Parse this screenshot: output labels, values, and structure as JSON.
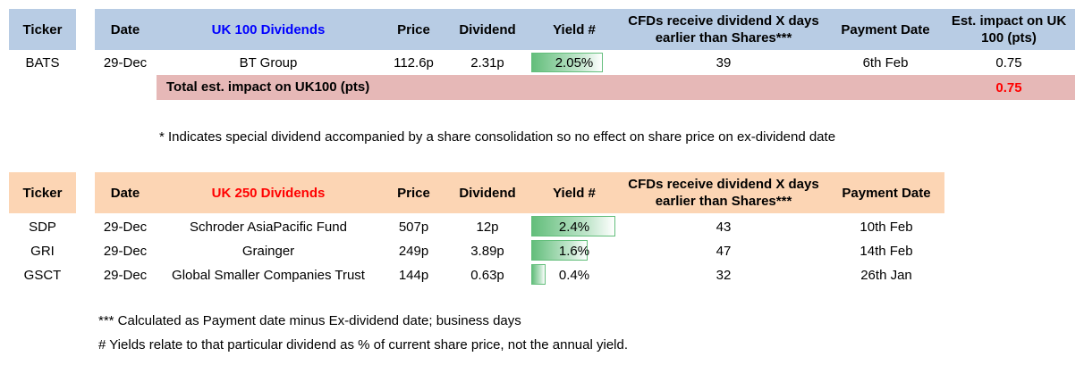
{
  "uk100": {
    "headers": {
      "ticker": "Ticker",
      "date": "Date",
      "title": "UK 100 Dividends",
      "price": "Price",
      "dividend": "Dividend",
      "yield": "Yield #",
      "cfd_line1": "CFDs receive dividend X days",
      "cfd_line2": "earlier than Shares***",
      "payment_date": "Payment Date",
      "impact_line1": "Est. impact on UK",
      "impact_line2": "100 (pts)"
    },
    "rows": [
      {
        "ticker": "BATS",
        "date": "29-Dec",
        "name": "BT Group",
        "price": "112.6p",
        "dividend": "2.31p",
        "yield": "2.05%",
        "yield_pct": 2.05,
        "cfd_days": "39",
        "payment_date": "6th Feb",
        "impact": "0.75"
      }
    ],
    "total": {
      "label": "Total est. impact on UK100 (pts)",
      "value": "0.75"
    }
  },
  "special_note": "* Indicates special dividend accompanied by a share consolidation so no effect on share price on ex-dividend date",
  "uk250": {
    "headers": {
      "ticker": "Ticker",
      "date": "Date",
      "title": "UK 250 Dividends",
      "price": "Price",
      "dividend": "Dividend",
      "yield": "Yield #",
      "cfd_line1": "CFDs receive dividend X days",
      "cfd_line2": "earlier than Shares***",
      "payment_date": "Payment Date"
    },
    "rows": [
      {
        "ticker": "SDP",
        "date": "29-Dec",
        "name": "Schroder AsiaPacific Fund",
        "price": "507p",
        "dividend": "12p",
        "yield": "2.4%",
        "yield_pct": 2.4,
        "cfd_days": "43",
        "payment_date": "10th Feb"
      },
      {
        "ticker": "GRI",
        "date": "29-Dec",
        "name": "Grainger",
        "price": "249p",
        "dividend": "3.89p",
        "yield": "1.6%",
        "yield_pct": 1.6,
        "cfd_days": "47",
        "payment_date": "14th Feb"
      },
      {
        "ticker": "GSCT",
        "date": "29-Dec",
        "name": "Global Smaller Companies Trust",
        "price": "144p",
        "dividend": "0.63p",
        "yield": "0.4%",
        "yield_pct": 0.4,
        "cfd_days": "32",
        "payment_date": "26th Jan"
      }
    ]
  },
  "footnotes": {
    "calc": "*** Calculated as Payment date minus Ex-dividend date; business days",
    "yield": "# Yields relate to that particular dividend as % of current share price, not the annual yield."
  },
  "colors": {
    "uk100_header": "#b8cce4",
    "uk100_title": "#0000ff",
    "uk250_header": "#fcd5b4",
    "uk250_title": "#ff0000",
    "total_band": "#e6b8b7",
    "total_value": "#ff0000",
    "yield_bar": "#63be7b"
  }
}
